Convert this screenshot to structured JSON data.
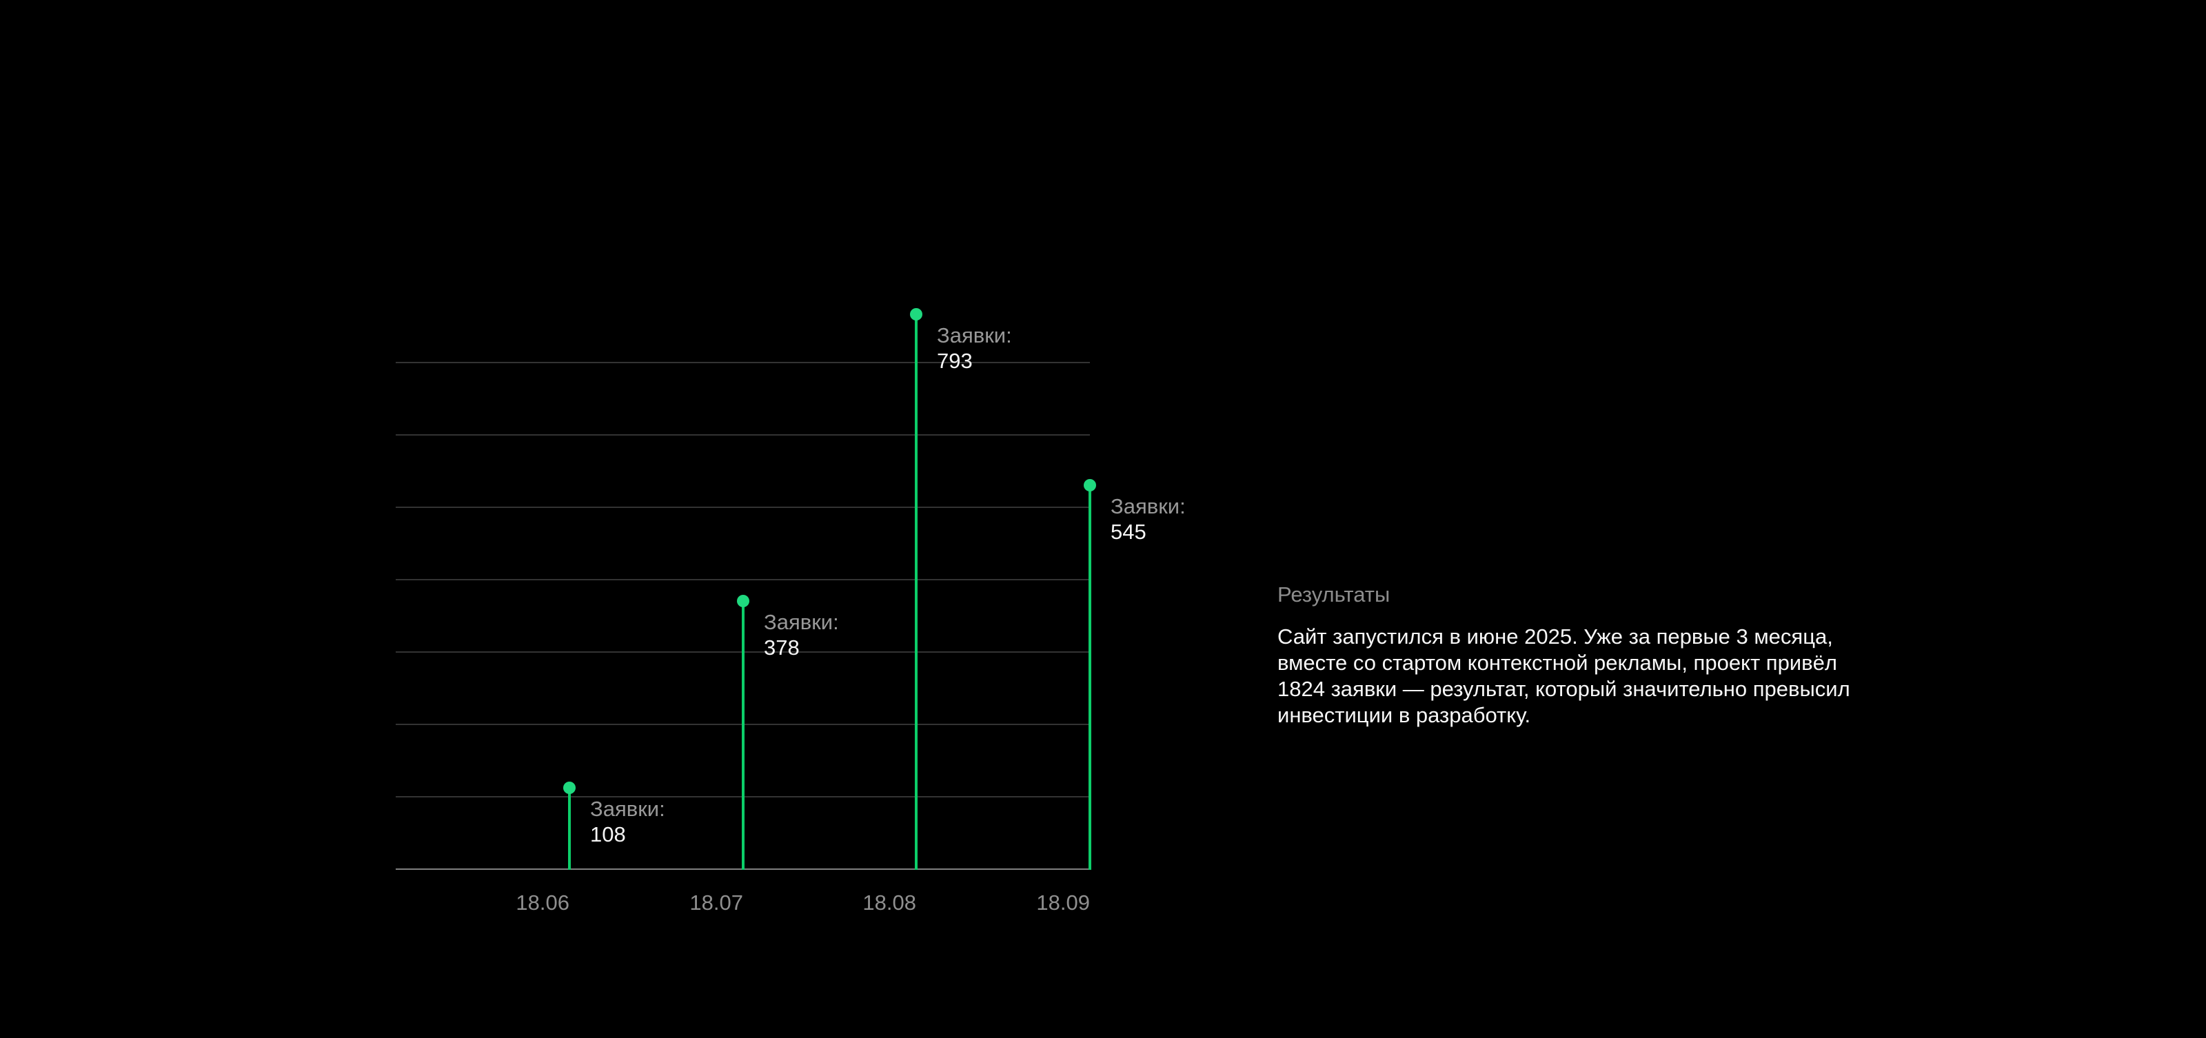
{
  "page": {
    "background_color": "#000000"
  },
  "results": {
    "heading": "Результаты",
    "paragraph": "Сайт запустился в июне 2025. Уже за первые 3 месяца,\nвместе со стартом контекстной рекламы, проект привёл\n1824 заявки — результат, который значительно превысил\nинвестиции в разработку."
  },
  "chart_data": {
    "type": "bar",
    "style": "lollipop",
    "title": "",
    "categories": [
      "18.06",
      "18.07",
      "18.08",
      "18.09"
    ],
    "values": [
      108,
      378,
      793,
      545
    ],
    "series_name": "Заявки",
    "point_label_prefix": "Заявки:",
    "point_labels": [
      "108",
      "378",
      "793",
      "545"
    ],
    "xlabel": "",
    "ylabel": "",
    "ylim": [
      0,
      820
    ],
    "grid": "horizontal",
    "gridline_count": 7,
    "legend": "none",
    "colors": {
      "stem": "#0cce69",
      "dot": "#1fd97f",
      "gridline": "#333333",
      "axis": "#7f7f7f",
      "label_grey": "#989898",
      "value_white": "#f5f5f5",
      "tick_label": "#8f8f8f"
    }
  }
}
